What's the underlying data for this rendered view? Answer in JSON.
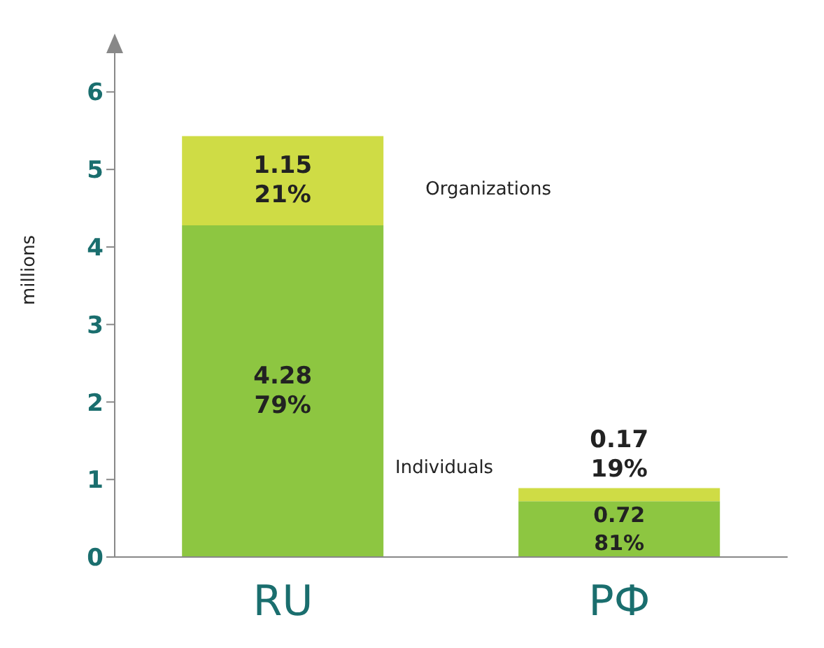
{
  "chart_data": {
    "type": "bar",
    "stacked": true,
    "categories": [
      "RU",
      "РФ"
    ],
    "ylabel": "millions",
    "ylim": [
      0,
      6.5
    ],
    "yticks": [
      0,
      1,
      2,
      3,
      4,
      5,
      6
    ],
    "grid": false,
    "legend": false,
    "series": [
      {
        "name": "Individuals",
        "color": "#8dc641",
        "values": [
          4.28,
          0.72
        ],
        "value_labels": [
          "4.28\n79%",
          "0.72\n81%"
        ]
      },
      {
        "name": "Organizations",
        "color": "#cfdc45",
        "values": [
          1.15,
          0.17
        ],
        "value_labels": [
          "1.15\n21%",
          "0.17\n19%"
        ]
      }
    ]
  }
}
